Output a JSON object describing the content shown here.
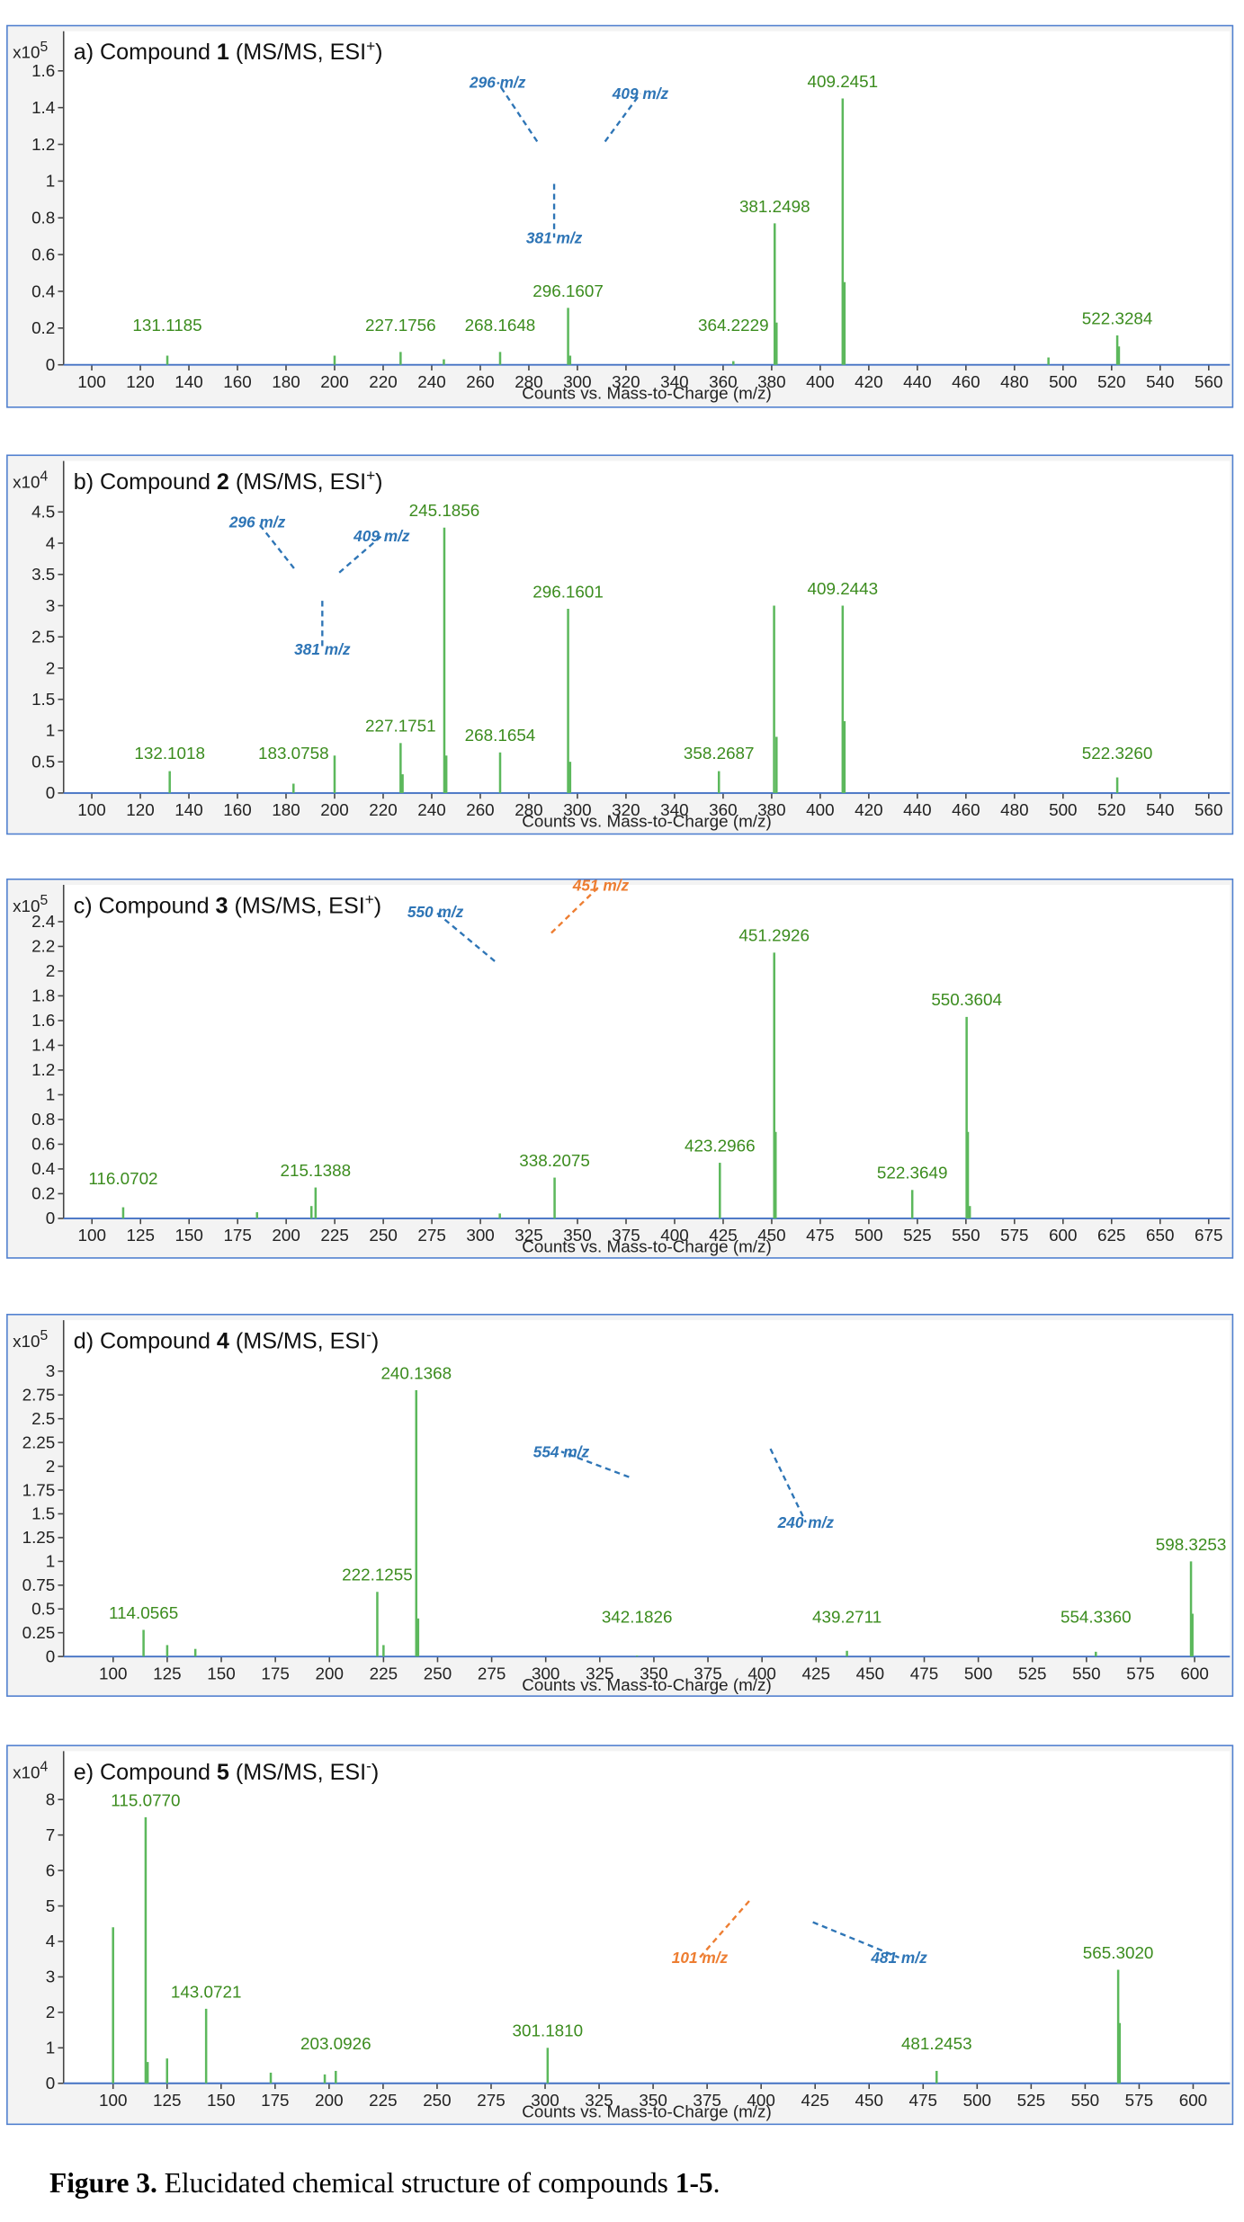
{
  "chart_data": [
    {
      "type": "bar",
      "title": {
        "prefix": "a) Compound ",
        "number": "1",
        "mode": " (MS/MS, ESI",
        "charge": "+",
        "suffix": ")"
      },
      "scale_label": "x10",
      "scale_exponent": "5",
      "x_label": "Counts vs. Mass-to-Charge (m/z)",
      "xlim": [
        88.4,
        568.7
      ],
      "xticks": [
        100,
        120,
        140,
        160,
        180,
        200,
        220,
        240,
        260,
        280,
        300,
        320,
        340,
        360,
        380,
        400,
        420,
        440,
        460,
        480,
        500,
        520,
        540,
        560
      ],
      "ylim": [
        0,
        1.75
      ],
      "yticks": [
        0,
        0.2,
        0.4,
        0.6,
        0.8,
        1,
        1.2,
        1.4,
        1.6
      ],
      "color": "#5cb85c",
      "x": [
        131.1185,
        200,
        227.1756,
        245,
        268.1648,
        296.1607,
        297,
        364.2229,
        381.2498,
        382,
        409.2451,
        410,
        494,
        522.3284,
        523
      ],
      "values": [
        0.05,
        0.05,
        0.07,
        0.03,
        0.07,
        0.31,
        0.05,
        0.02,
        0.77,
        0.23,
        1.45,
        0.45,
        0.04,
        0.16,
        0.1
      ],
      "annotations": [
        {
          "text": "296 m/z",
          "color": "#2e75b6"
        },
        {
          "text": "409 m/z",
          "color": "#2e75b6"
        },
        {
          "text": "381 m/z",
          "color": "#2e75b6"
        }
      ]
    },
    {
      "type": "bar",
      "title": {
        "prefix": "b) Compound ",
        "number": "2",
        "mode": " (MS/MS, ESI",
        "charge": "+",
        "suffix": ")"
      },
      "scale_label": "x10",
      "scale_exponent": "4",
      "x_label": "Counts vs. Mass-to-Charge (m/z)",
      "xlim": [
        88.4,
        568.7
      ],
      "xticks": [
        100,
        120,
        140,
        160,
        180,
        200,
        220,
        240,
        260,
        280,
        300,
        320,
        340,
        360,
        380,
        400,
        420,
        440,
        460,
        480,
        500,
        520,
        540,
        560
      ],
      "ylim": [
        0,
        5.1
      ],
      "yticks": [
        0,
        0.5,
        1,
        1.5,
        2,
        2.5,
        3,
        3.5,
        4,
        4.5
      ],
      "color": "#5cb85c",
      "x": [
        132.1018,
        183.0758,
        200,
        227.1751,
        228,
        245.1856,
        246,
        268.1654,
        296.1601,
        297,
        358.2687,
        381,
        382,
        409.2443,
        410,
        {
          "value": 522.326,
          "label": "522.3260"
        }
      ],
      "values": [
        0.35,
        0.15,
        0.6,
        0.8,
        0.3,
        4.25,
        0.6,
        0.65,
        2.95,
        0.5,
        0.35,
        3.0,
        0.9,
        3.0,
        1.15,
        0.25
      ],
      "annotations": [
        {
          "text": "296 m/z",
          "color": "#2e75b6"
        },
        {
          "text": "409 m/z",
          "color": "#2e75b6"
        },
        {
          "text": "381 m/z",
          "color": "#2e75b6"
        }
      ]
    },
    {
      "type": "bar",
      "title": {
        "prefix": "c) Compound ",
        "number": "3",
        "mode": " (MS/MS, ESI",
        "charge": "+",
        "suffix": ")"
      },
      "scale_label": "x10",
      "scale_exponent": "5",
      "x_label": "Counts vs. Mass-to-Charge (m/z)",
      "xlim": [
        85.4,
        685.9
      ],
      "xticks": [
        100,
        125,
        150,
        175,
        200,
        225,
        250,
        275,
        300,
        325,
        350,
        375,
        400,
        425,
        450,
        475,
        500,
        525,
        550,
        575,
        600,
        625,
        650,
        675
      ],
      "ylim": [
        0,
        2.63
      ],
      "yticks": [
        0,
        0.2,
        0.4,
        0.6,
        0.8,
        1,
        1.2,
        1.4,
        1.6,
        1.8,
        2,
        2.2,
        2.4
      ],
      "color": "#5cb85c",
      "x": [
        116.0702,
        185,
        213,
        215.1388,
        310,
        338.2075,
        423.2966,
        451.2926,
        452,
        522.3649,
        550.3604,
        551,
        552
      ],
      "values": [
        0.09,
        0.05,
        0.1,
        0.25,
        0.04,
        0.33,
        0.45,
        2.15,
        0.7,
        0.23,
        1.63,
        0.7,
        0.1
      ],
      "annotations": [
        {
          "text": "550 m/z",
          "color": "#2e75b6"
        },
        {
          "text": "451 m/z",
          "color": "#ed7d31"
        }
      ]
    },
    {
      "type": "bar",
      "title": {
        "prefix": "d) Compound ",
        "number": "4",
        "mode": " (MS/MS, ESI",
        "charge": "-",
        "suffix": ")"
      },
      "scale_label": "x10",
      "scale_exponent": "5",
      "x_label": "Counts vs. Mass-to-Charge (m/z)",
      "xlim": [
        77.1,
        616.3
      ],
      "xticks": [
        100,
        125,
        150,
        175,
        200,
        225,
        250,
        275,
        300,
        325,
        350,
        375,
        400,
        425,
        450,
        475,
        500,
        525,
        550,
        575,
        600
      ],
      "ylim": [
        0,
        3.45
      ],
      "yticks": [
        0,
        0.25,
        0.5,
        0.75,
        1,
        1.25,
        1.5,
        1.75,
        2,
        2.25,
        2.5,
        2.75,
        3
      ],
      "color": "#5cb85c",
      "x": [
        114.0565,
        125,
        138,
        222.1255,
        225,
        240.1368,
        241,
        342.1826,
        439.2711,
        {
          "value": 554.336,
          "label": "554.3360"
        },
        598.3253,
        599
      ],
      "values": [
        0.28,
        0.12,
        0.08,
        0.68,
        0.12,
        2.8,
        0.4,
        0.01,
        0.06,
        0.05,
        1.0,
        0.45
      ],
      "annotations": [
        {
          "text": "554 m/z",
          "color": "#2e75b6"
        },
        {
          "text": "240 m/z",
          "color": "#2e75b6"
        }
      ]
    },
    {
      "type": "bar",
      "title": {
        "prefix": "e) Compound ",
        "number": "5",
        "mode": " (MS/MS, ESI",
        "charge": "-",
        "suffix": ")"
      },
      "scale_label": "x10",
      "scale_exponent": "4",
      "x_label": "Counts vs. Mass-to-Charge (m/z)",
      "xlim": [
        77.1,
        617
      ],
      "xticks": [
        100,
        125,
        150,
        175,
        200,
        225,
        250,
        275,
        300,
        325,
        350,
        375,
        400,
        425,
        450,
        475,
        500,
        525,
        550,
        575,
        600
      ],
      "ylim": [
        0,
        9.1
      ],
      "yticks": [
        0,
        1,
        2,
        3,
        4,
        5,
        6,
        7,
        8
      ],
      "color": "#5cb85c",
      "x": [
        100,
        {
          "value": 115.077,
          "label": "115.0770"
        },
        116,
        125,
        143.0721,
        173,
        198,
        203.0926,
        {
          "value": 301.181,
          "label": "301.1810"
        },
        481.2453,
        {
          "value": 565.302,
          "label": "565.3020"
        },
        566
      ],
      "values": [
        4.4,
        7.5,
        0.6,
        0.7,
        2.1,
        0.3,
        0.25,
        0.35,
        1.0,
        0.35,
        3.2,
        1.7
      ],
      "annotations": [
        {
          "text": "101 m/z",
          "color": "#ed7d31"
        },
        {
          "text": "481 m/z",
          "color": "#2e75b6"
        }
      ]
    }
  ],
  "caption": {
    "lead": "Figure 3.",
    "text": " Elucidated chemical structure of compounds ",
    "range": "1-5",
    "end": "."
  }
}
